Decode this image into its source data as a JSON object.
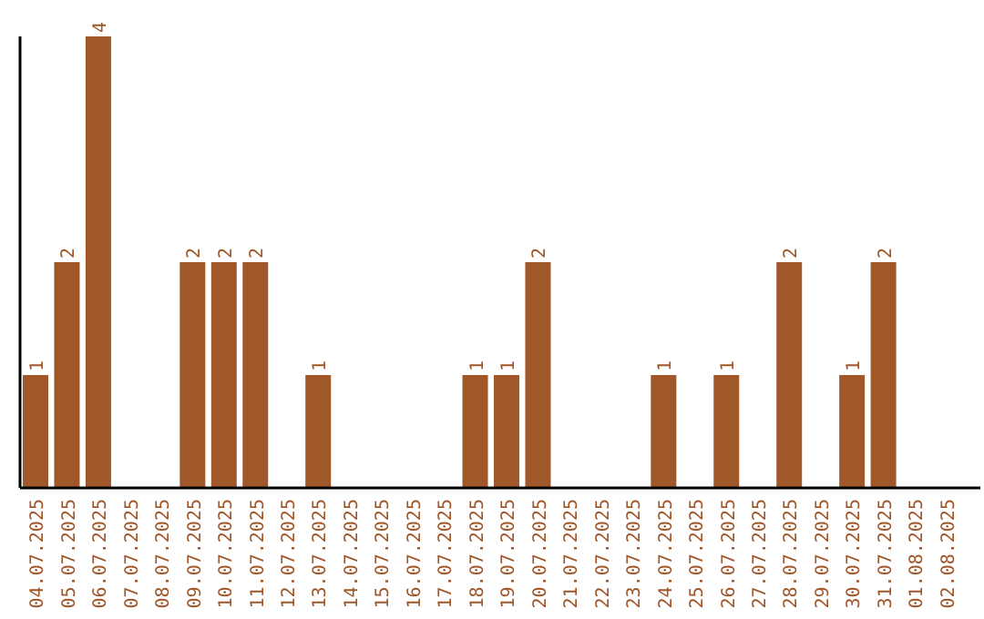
{
  "chart_data": {
    "type": "bar",
    "categories": [
      "04.07.2025",
      "05.07.2025",
      "06.07.2025",
      "07.07.2025",
      "08.07.2025",
      "09.07.2025",
      "10.07.2025",
      "11.07.2025",
      "12.07.2025",
      "13.07.2025",
      "14.07.2025",
      "15.07.2025",
      "16.07.2025",
      "17.07.2025",
      "18.07.2025",
      "19.07.2025",
      "20.07.2025",
      "21.07.2025",
      "22.07.2025",
      "23.07.2025",
      "24.07.2025",
      "25.07.2025",
      "26.07.2025",
      "27.07.2025",
      "28.07.2025",
      "29.07.2025",
      "30.07.2025",
      "31.07.2025",
      "01.08.2025",
      "02.08.2025"
    ],
    "values": [
      1,
      2,
      4,
      0,
      0,
      2,
      2,
      2,
      0,
      1,
      0,
      0,
      0,
      0,
      1,
      1,
      2,
      0,
      0,
      0,
      1,
      0,
      1,
      0,
      2,
      0,
      1,
      2,
      0,
      0
    ],
    "value_labels": [
      "1",
      "2",
      "4",
      null,
      null,
      "2",
      "2",
      "2",
      null,
      "1",
      null,
      null,
      null,
      null,
      "1",
      "1",
      "2",
      null,
      null,
      null,
      "1",
      null,
      "1",
      null,
      "2",
      null,
      "1",
      "2",
      null,
      null
    ],
    "color": "#a0572a",
    "ylim": [
      0,
      4
    ],
    "grid": false,
    "legend": false,
    "tick_labels": "x"
  }
}
